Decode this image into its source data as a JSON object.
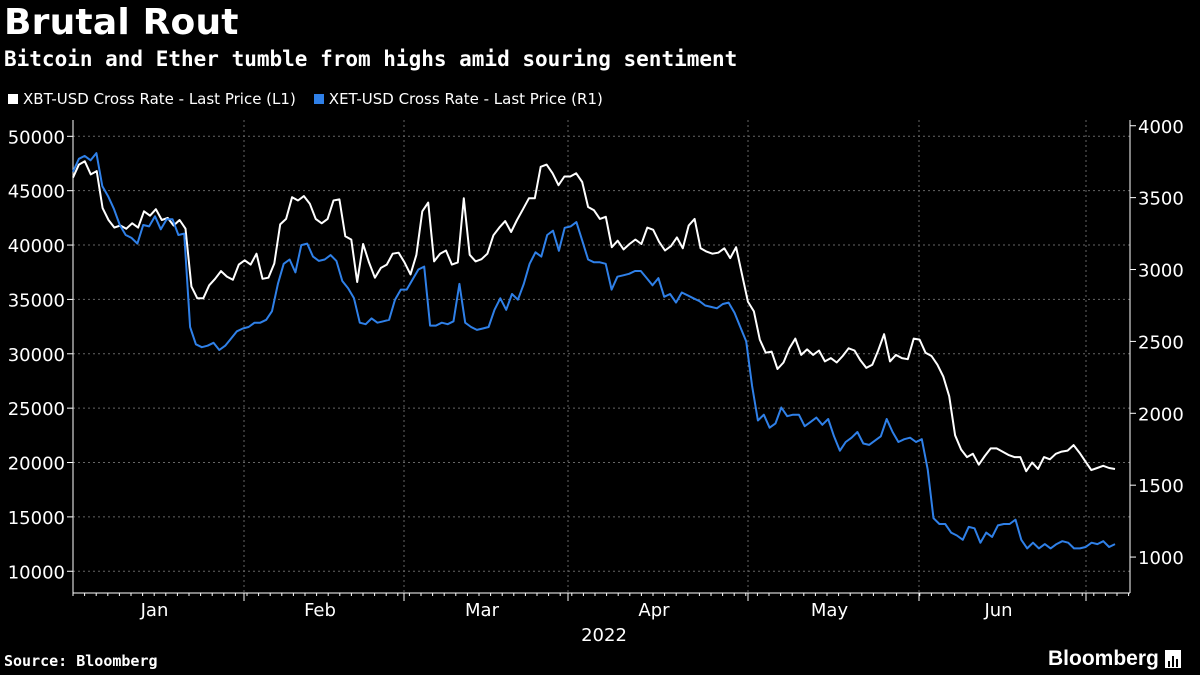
{
  "chart_data": {
    "type": "line",
    "title": "Brutal Rout",
    "subtitle": "Bitcoin and Ether tumble from highs amid souring sentiment",
    "year_label": "2022",
    "source": "Source: Bloomberg",
    "brand": "Bloomberg",
    "legend_position": "top-left",
    "grid": true,
    "colors": {
      "xbt": "#ffffff",
      "xet": "#2f80e8",
      "background": "#000000",
      "grid": "#666666"
    },
    "x_ticks": [
      "Jan",
      "Feb",
      "Mar",
      "Apr",
      "May",
      "Jun"
    ],
    "y_left": {
      "range": [
        8000,
        51500
      ],
      "ticks": [
        "50000",
        "45000",
        "40000",
        "35000",
        "30000",
        "25000",
        "20000",
        "15000",
        "10000"
      ],
      "tick_values": [
        50000,
        45000,
        40000,
        35000,
        30000,
        25000,
        20000,
        15000,
        10000
      ]
    },
    "y_right": {
      "range": [
        750,
        4040
      ],
      "ticks": [
        "4000",
        "3500",
        "3000",
        "2500",
        "2000",
        "1500",
        "1000"
      ],
      "tick_values": [
        4000,
        3500,
        3000,
        2500,
        2000,
        1500,
        1000
      ]
    },
    "series": [
      {
        "name": "XBT-USD Cross Rate - Last Price (L1)",
        "axis": "left",
        "values": [
          46200,
          47400,
          47700,
          46500,
          46800,
          43400,
          42300,
          41600,
          41800,
          41500,
          42000,
          41600,
          43100,
          42700,
          43300,
          42300,
          42500,
          41800,
          42300,
          41500,
          36200,
          35100,
          35100,
          36300,
          36900,
          37600,
          37100,
          36800,
          38200,
          38600,
          38200,
          39200,
          36900,
          37000,
          38300,
          41900,
          42400,
          44400,
          44100,
          44500,
          43800,
          42400,
          42000,
          42400,
          44100,
          44200,
          40800,
          40500,
          36600,
          40100,
          38400,
          37000,
          37900,
          38200,
          39200,
          39300,
          38400,
          37300,
          39100,
          43100,
          43900,
          38500,
          39200,
          39500,
          38200,
          38400,
          44300,
          39100,
          38500,
          38700,
          39200,
          40900,
          41600,
          42200,
          41200,
          42300,
          43300,
          44300,
          44300,
          47200,
          47400,
          46600,
          45500,
          46300,
          46300,
          46600,
          45800,
          43500,
          43200,
          42400,
          42600,
          39800,
          40400,
          39600,
          40100,
          40500,
          40100,
          41600,
          41400,
          40300,
          39500,
          39900,
          40700,
          39700,
          41800,
          42400,
          39700,
          39400,
          39200,
          39300,
          39700,
          38800,
          39800,
          37300,
          34800,
          33900,
          31300,
          30100,
          30200,
          28600,
          29200,
          30500,
          31400,
          29900,
          30400,
          29900,
          30300,
          29300,
          29600,
          29200,
          29800,
          30500,
          30300,
          29400,
          28700,
          29000,
          30300,
          31800,
          29300,
          29900,
          29600,
          29500,
          31400,
          31300,
          30100,
          29800,
          29000,
          27900,
          26100,
          22500,
          21200,
          20500,
          20800,
          19800,
          20600,
          21300,
          21300,
          21000,
          20700,
          20500,
          20500,
          19200,
          20000,
          19400,
          20500,
          20300,
          20800,
          21000,
          21100,
          21600,
          20900,
          20100,
          19300,
          19500,
          19700,
          19500,
          19400
        ]
      },
      {
        "name": "XET-USD Cross Rate - Last Price (R1)",
        "axis": "right",
        "values": [
          3680,
          3770,
          3790,
          3760,
          3810,
          3580,
          3510,
          3420,
          3310,
          3240,
          3220,
          3180,
          3310,
          3300,
          3370,
          3280,
          3350,
          3350,
          3240,
          3250,
          2600,
          2480,
          2460,
          2470,
          2490,
          2440,
          2470,
          2520,
          2570,
          2590,
          2600,
          2630,
          2630,
          2650,
          2710,
          2900,
          3040,
          3070,
          2980,
          3170,
          3180,
          3090,
          3060,
          3070,
          3100,
          3060,
          2920,
          2870,
          2800,
          2630,
          2620,
          2660,
          2630,
          2640,
          2650,
          2790,
          2860,
          2860,
          2930,
          3000,
          3020,
          2610,
          2610,
          2630,
          2620,
          2640,
          2900,
          2630,
          2600,
          2580,
          2590,
          2600,
          2720,
          2800,
          2720,
          2830,
          2790,
          2900,
          3040,
          3120,
          3090,
          3240,
          3270,
          3130,
          3290,
          3300,
          3330,
          3200,
          3070,
          3050,
          3050,
          3040,
          2860,
          2950,
          2960,
          2970,
          2990,
          2990,
          2940,
          2890,
          2940,
          2810,
          2830,
          2770,
          2840,
          2820,
          2800,
          2780,
          2750,
          2740,
          2730,
          2760,
          2770,
          2700,
          2600,
          2500,
          2190,
          1950,
          1990,
          1900,
          1930,
          2040,
          1980,
          1990,
          1990,
          1910,
          1940,
          1970,
          1920,
          1960,
          1840,
          1740,
          1800,
          1830,
          1870,
          1790,
          1780,
          1810,
          1840,
          1960,
          1870,
          1800,
          1820,
          1830,
          1800,
          1820,
          1610,
          1270,
          1230,
          1230,
          1170,
          1150,
          1120,
          1210,
          1200,
          1100,
          1170,
          1140,
          1220,
          1230,
          1230,
          1260,
          1120,
          1060,
          1100,
          1060,
          1090,
          1060,
          1090,
          1110,
          1100,
          1060,
          1060,
          1070,
          1100,
          1090,
          1110,
          1070,
          1090
        ]
      }
    ]
  }
}
